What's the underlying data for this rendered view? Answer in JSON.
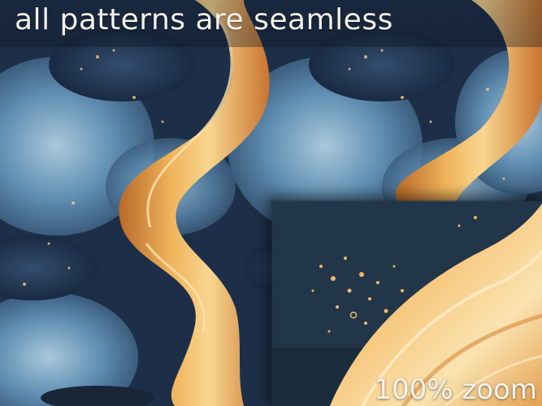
{
  "title": "all patterns are seamless",
  "zoom_label": "100% zoom",
  "colors": {
    "navy": "#1b2b42",
    "steel_blue": "#4f7fa6",
    "pale_blue": "#9cc0d8",
    "gold": "#e9a64a",
    "light_gold": "#f6cf88",
    "dark_teal": "#23384a",
    "text": "#f4f1ea"
  }
}
